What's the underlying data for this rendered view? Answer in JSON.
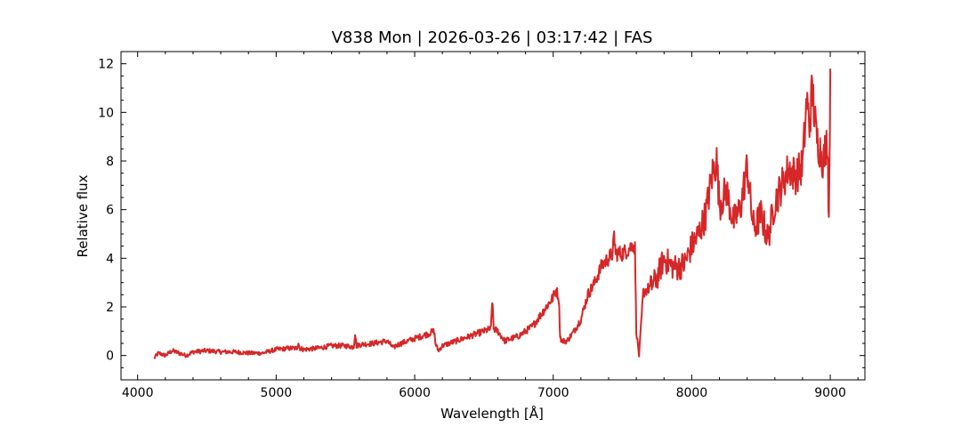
{
  "chart_data": {
    "type": "line",
    "title": "V838 Mon | 2026-03-26 | 03:17:42 | FAS",
    "xlabel": "Wavelength [Å]",
    "ylabel": "Relative flux",
    "xlim": [
      3880,
      9250
    ],
    "ylim": [
      -1.0,
      12.5
    ],
    "xticks": [
      4000,
      5000,
      6000,
      7000,
      8000,
      9000
    ],
    "yticks": [
      0,
      2,
      4,
      6,
      8,
      10,
      12
    ],
    "grid": false,
    "line_color": "#d62728",
    "series": [
      {
        "x": [
          4120,
          4150,
          4200,
          4250,
          4300,
          4350,
          4400,
          4500,
          4600,
          4700,
          4800,
          4900,
          5000,
          5100,
          5150,
          5160,
          5170,
          5200,
          5300,
          5400,
          5500,
          5560,
          5570,
          5580,
          5600,
          5700,
          5800,
          5850,
          5860,
          5900,
          6000,
          6100,
          6140,
          6150,
          6170,
          6200,
          6300,
          6400,
          6500,
          6550,
          6560,
          6570,
          6600,
          6650,
          6700,
          6750,
          6800,
          6850,
          6900,
          6950,
          7000,
          7020,
          7040,
          7050,
          7060,
          7100,
          7150,
          7200,
          7250,
          7300,
          7350,
          7400,
          7430,
          7440,
          7450,
          7500,
          7550,
          7580,
          7590,
          7600,
          7620,
          7650,
          7700,
          7750,
          7800,
          7850,
          7900,
          7950,
          8000,
          8050,
          8100,
          8150,
          8180,
          8200,
          8250,
          8300,
          8350,
          8400,
          8430,
          8450,
          8500,
          8550,
          8600,
          8650,
          8700,
          8750,
          8800,
          8830,
          8850,
          8870,
          8900,
          8950,
          8980,
          8990,
          9000
        ],
        "y": [
          -0.1,
          0.1,
          0.0,
          0.2,
          0.1,
          0.0,
          0.15,
          0.2,
          0.15,
          0.15,
          0.1,
          0.1,
          0.25,
          0.3,
          0.3,
          0.55,
          0.3,
          0.25,
          0.3,
          0.4,
          0.4,
          0.35,
          0.95,
          0.4,
          0.45,
          0.5,
          0.6,
          0.3,
          0.4,
          0.5,
          0.7,
          0.9,
          1.0,
          0.5,
          0.2,
          0.4,
          0.6,
          0.8,
          1.0,
          1.1,
          2.3,
          1.1,
          1.0,
          0.6,
          0.7,
          0.8,
          1.0,
          1.2,
          1.6,
          2.0,
          2.4,
          2.7,
          2.4,
          0.8,
          0.6,
          0.6,
          1.0,
          1.5,
          2.5,
          3.0,
          3.7,
          4.0,
          4.2,
          5.0,
          4.2,
          4.2,
          4.4,
          4.6,
          4.4,
          1.0,
          0.0,
          2.6,
          2.8,
          3.2,
          4.0,
          3.7,
          3.6,
          3.8,
          4.5,
          5.0,
          5.8,
          7.5,
          8.0,
          6.2,
          6.8,
          5.5,
          6.0,
          7.8,
          6.0,
          5.2,
          5.8,
          4.8,
          6.3,
          7.0,
          7.7,
          7.4,
          7.8,
          10.5,
          9.5,
          11.0,
          9.0,
          8.0,
          9.0,
          5.5,
          11.8
        ]
      }
    ]
  }
}
